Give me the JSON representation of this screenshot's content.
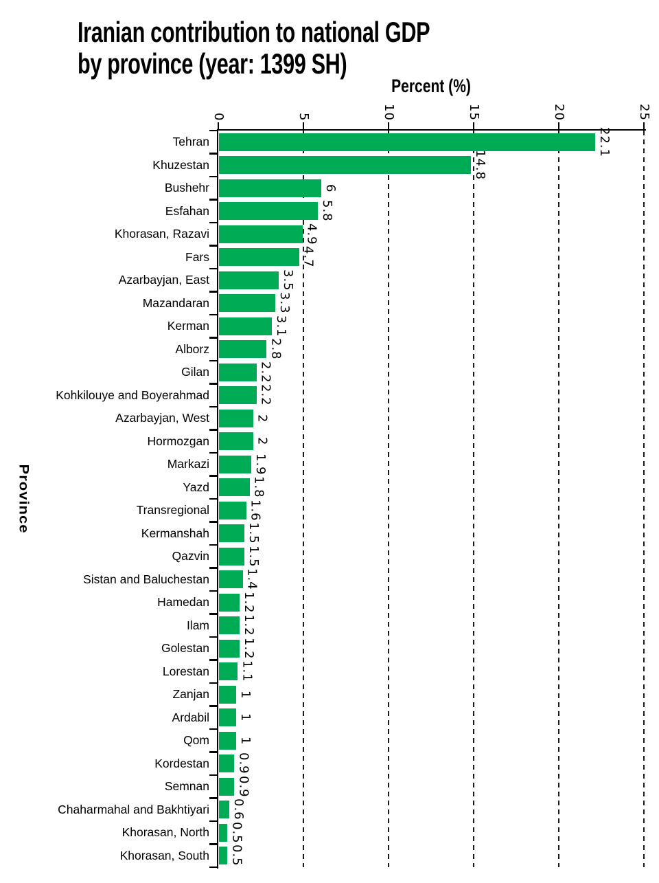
{
  "title": {
    "line1": "Iranian contribution to national GDP",
    "line2": "by province (year: 1399 SH)"
  },
  "chart_data": {
    "type": "bar",
    "orientation": "horizontal",
    "title": "Iranian contribution to national GDP by province (year: 1399 SH)",
    "xlabel": "Percent (%)",
    "ylabel": "Province",
    "xlim": [
      0,
      25
    ],
    "xticks": [
      0,
      5,
      10,
      15,
      20,
      25
    ],
    "xtick_labels": [
      "0",
      "5",
      "10",
      "15",
      "20",
      "25"
    ],
    "grid": "vertical dashed lines at xticks",
    "legend": "none",
    "bar_color": "#00ab55",
    "axis_color": "#000000",
    "categories": [
      "Tehran",
      "Khuzestan",
      "Bushehr",
      "Esfahan",
      "Khorasan, Razavi",
      "Fars",
      "Azarbayjan, East",
      "Mazandaran",
      "Kerman",
      "Alborz",
      "Gilan",
      "Kohkilouye and Boyerahmad",
      "Azarbayjan, West",
      "Hormozgan",
      "Markazi",
      "Yazd",
      "Transregional",
      "Kermanshah",
      "Qazvin",
      "Sistan and Baluchestan",
      "Hamedan",
      "Ilam",
      "Golestan",
      "Lorestan",
      "Zanjan",
      "Ardabil",
      "Qom",
      "Kordestan",
      "Semnan",
      "Chaharmahal and Bakhtiyari",
      "Khorasan, North",
      "Khorasan, South"
    ],
    "values": [
      22.1,
      14.8,
      6,
      5.8,
      4.9,
      4.7,
      3.5,
      3.3,
      3.1,
      2.8,
      2.2,
      2.2,
      2,
      2,
      1.9,
      1.8,
      1.6,
      1.5,
      1.5,
      1.4,
      1.2,
      1.2,
      1.2,
      1.1,
      1,
      1,
      1,
      0.9,
      0.9,
      0.6,
      0.5,
      0.5
    ],
    "value_labels": [
      "22.1",
      "14.8",
      "6",
      "5.8",
      "4.9",
      "4.7",
      "3.5",
      "3.3",
      "3.1",
      "2.8",
      "2.2",
      "2.2",
      "2",
      "2",
      "1.9",
      "1.8",
      "1.6",
      "1.5",
      "1.5",
      "1.4",
      "1.2",
      "1.2",
      "1.2",
      "1.1",
      "1",
      "1",
      "1",
      "0.9",
      "0.9",
      "0.6",
      "0.5",
      "0.5"
    ]
  }
}
